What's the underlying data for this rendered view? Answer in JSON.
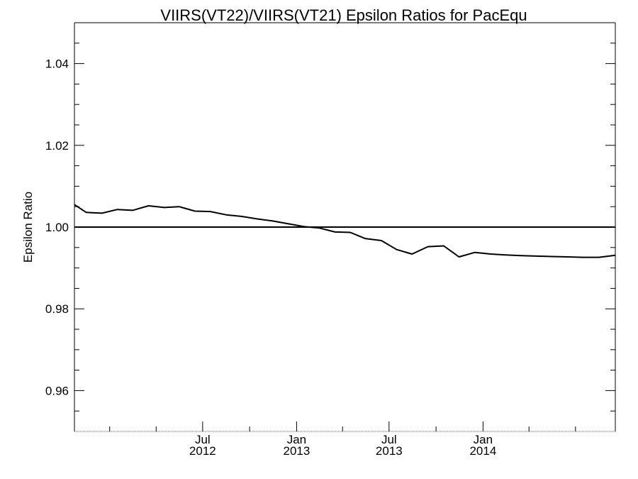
{
  "chart_data": {
    "type": "line",
    "title": "VIIRS(VT22)/VIIRS(VT21)  Epsilon Ratios for PacEqu",
    "xlabel": "",
    "ylabel": "Epsilon Ratio",
    "xlim": [
      "2011-10-24",
      "2014-09-17"
    ],
    "ylim": [
      0.95,
      1.05
    ],
    "grid": false,
    "x_ticks": [
      {
        "date": "2012-07-01",
        "line1": "Jul",
        "line2": "2012"
      },
      {
        "date": "2013-01-01",
        "line1": "Jan",
        "line2": "2013"
      },
      {
        "date": "2013-07-01",
        "line1": "Jul",
        "line2": "2013"
      },
      {
        "date": "2014-01-01",
        "line1": "Jan",
        "line2": "2014"
      }
    ],
    "x_minor_ticks": [
      "2012-01-01",
      "2012-04-01",
      "2012-10-01",
      "2013-04-01",
      "2013-10-01",
      "2014-04-01",
      "2014-07-01"
    ],
    "y_ticks": [
      {
        "value": 0.96,
        "label": "0.96"
      },
      {
        "value": 0.98,
        "label": "0.98"
      },
      {
        "value": 1.0,
        "label": "1.00"
      },
      {
        "value": 1.02,
        "label": "1.02"
      },
      {
        "value": 1.04,
        "label": "1.04"
      }
    ],
    "y_minor_step": 0.005,
    "reference_line": 1.0,
    "series": [
      {
        "x": [
          "2011-10-24",
          "2011-11-16",
          "2011-12-17",
          "2012-01-16",
          "2012-02-15",
          "2012-03-17",
          "2012-04-17",
          "2012-05-16",
          "2012-06-16",
          "2012-07-16",
          "2012-08-16",
          "2012-09-16",
          "2012-10-16",
          "2012-11-15",
          "2012-12-16",
          "2013-01-16",
          "2013-02-14",
          "2013-03-17",
          "2013-04-16",
          "2013-05-15",
          "2013-06-16",
          "2013-07-16",
          "2013-08-15",
          "2013-09-15",
          "2013-10-16",
          "2013-11-15",
          "2013-12-16",
          "2014-01-01",
          "2014-01-16",
          "2014-02-14",
          "2014-03-17",
          "2014-04-16",
          "2014-05-16",
          "2014-06-16",
          "2014-07-16",
          "2014-08-16",
          "2014-09-17"
        ],
        "values": [
          1.0055,
          1.0036,
          1.0034,
          1.0043,
          1.0041,
          1.0052,
          1.0048,
          1.005,
          1.0039,
          1.0038,
          1.003,
          1.0026,
          1.002,
          1.0015,
          1.0008,
          1.0001,
          0.9998,
          0.9988,
          0.9987,
          0.9972,
          0.9967,
          0.9945,
          0.9934,
          0.9952,
          0.9954,
          0.9927,
          0.9938,
          0.9936,
          0.9934,
          0.9932,
          0.993,
          0.9929,
          0.9928,
          0.9927,
          0.9926,
          0.9926,
          0.9931
        ]
      }
    ]
  }
}
